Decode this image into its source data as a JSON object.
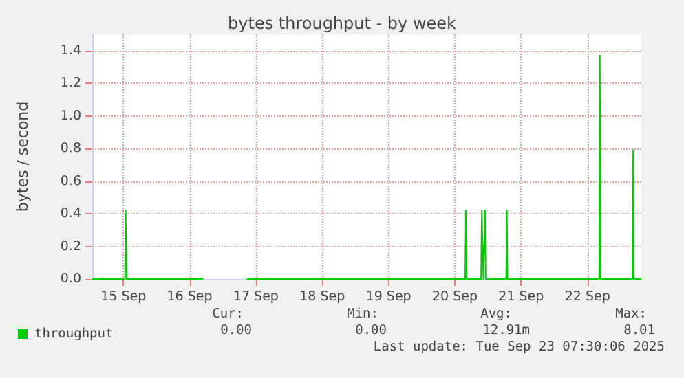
{
  "chart_data": {
    "type": "line",
    "title": "bytes throughput - by week",
    "ylabel": "bytes / second",
    "x": [
      "2025-09-15T00:45",
      "2025-09-15T12:35",
      "2025-09-15T12:52",
      "2025-09-15T13:10",
      "2025-09-16T16:50",
      "2025-09-17T00:00",
      "2025-09-17T08:40",
      "2025-09-20T15:45",
      "2025-09-20T16:00",
      "2025-09-20T16:15",
      "2025-09-20T21:30",
      "2025-09-20T21:46",
      "2025-09-20T22:20",
      "2025-09-20T22:55",
      "2025-09-20T23:10",
      "2025-09-21T06:35",
      "2025-09-21T06:50",
      "2025-09-21T07:05",
      "2025-09-22T16:15",
      "2025-09-22T16:30",
      "2025-09-22T16:45",
      "2025-09-23T04:18",
      "2025-09-23T04:33",
      "2025-09-23T04:48",
      "2025-09-23T07:30"
    ],
    "series": [
      {
        "name": "throughput",
        "color": "#00cc00",
        "values": [
          0,
          0,
          0.42,
          0,
          0,
          null,
          0,
          0,
          0.42,
          0,
          0,
          0.42,
          0,
          0.42,
          0,
          0,
          0.42,
          0,
          0,
          1.37,
          0,
          0,
          0.79,
          0,
          0
        ]
      }
    ],
    "xlim": [
      "2025-09-15T00:45",
      "2025-09-23T07:30"
    ],
    "xticks": [
      {
        "value": "2025-09-15T12:00",
        "label": "15 Sep"
      },
      {
        "value": "2025-09-16T12:00",
        "label": "16 Sep"
      },
      {
        "value": "2025-09-17T12:00",
        "label": "17 Sep"
      },
      {
        "value": "2025-09-18T12:00",
        "label": "18 Sep"
      },
      {
        "value": "2025-09-19T12:00",
        "label": "19 Sep"
      },
      {
        "value": "2025-09-20T12:00",
        "label": "20 Sep"
      },
      {
        "value": "2025-09-21T12:00",
        "label": "21 Sep"
      },
      {
        "value": "2025-09-22T12:00",
        "label": "22 Sep"
      }
    ],
    "ylim": [
      0,
      1.5
    ],
    "yticks": [
      {
        "value": 0,
        "label": "0.0"
      },
      0.2,
      0.4,
      0.6,
      0.8,
      {
        "value": 1,
        "label": "1.0"
      },
      1.2,
      1.4
    ],
    "grid": true,
    "legend": "bottom left",
    "marker": "none",
    "line_style": "solid",
    "annotations": [
      "Cur:",
      "0.00",
      "Min:",
      "0.00",
      "Avg:",
      "12.91m",
      "Max:",
      "8.01",
      "Last update: Tue Sep 23 07:30:06 2025"
    ]
  }
}
